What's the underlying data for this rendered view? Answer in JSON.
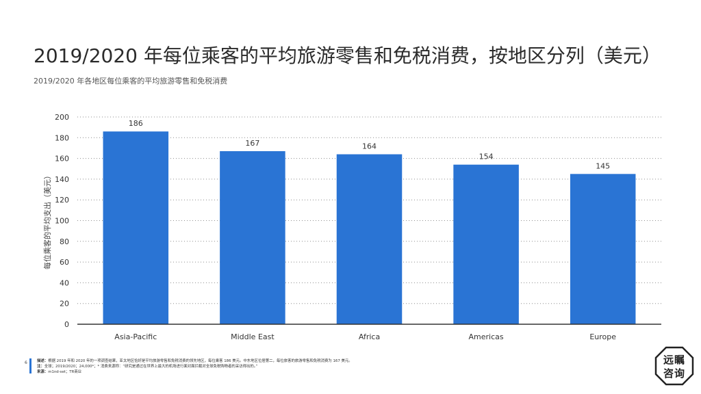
{
  "title": "2019/2020 年每位乘客的平均旅游零售和免税消费，按地区分列（美元）",
  "subtitle": "2019/2020 年各地区每位乘客的平均旅游零售和免税消费",
  "page_number": "6",
  "footnote": {
    "desc_label": "描述：",
    "desc_text": "根据 2019 年和 2020 年的一项调查结果，亚太地区恰好是平均旅游零售和免税消费的领先地区，每位乘客 186 美元。中东地区位居第二，每位旅客的旅游零售和免税消费为 167 美元。",
    "note_label": "注：",
    "note_text": "全球；2019/2020；24,000*；* 消费来源称：“研究是通过在世界上最大的机场进行面对面拦截对全球免税购物者的采访得出的。”",
    "source_label": "来源：",
    "source_text": "m1nd-set；TR商业"
  },
  "logo": {
    "line1": "远瞩",
    "line2": "咨询"
  },
  "colors": {
    "bar": "#2a74d4",
    "grid": "#8c8c8c",
    "axis": "#333333"
  },
  "chart_data": {
    "type": "bar",
    "categories": [
      "Asia-Pacific",
      "Middle East",
      "Africa",
      "Americas",
      "Europe"
    ],
    "values": [
      186,
      167,
      164,
      154,
      145
    ],
    "data_labels": [
      "186",
      "167",
      "164",
      "154",
      "145"
    ],
    "ylabel": "每位乘客的平均支出（美元）",
    "xlabel": "",
    "ylim": [
      0,
      200
    ],
    "yticks": [
      0,
      20,
      40,
      60,
      80,
      100,
      120,
      140,
      160,
      180,
      200
    ],
    "grid": true,
    "grid_style": "dotted",
    "legend": "none"
  }
}
